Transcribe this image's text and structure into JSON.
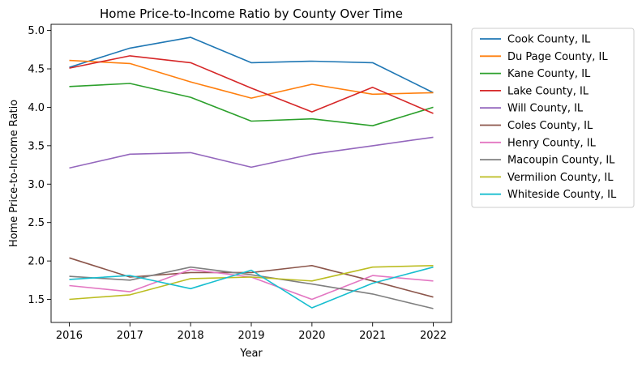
{
  "chart_data": {
    "type": "line",
    "title": "Home Price-to-Income Ratio by County Over Time",
    "xlabel": "Year",
    "ylabel": "Home Price-to-Income Ratio",
    "x": [
      2016,
      2017,
      2018,
      2019,
      2020,
      2021,
      2022
    ],
    "x_ticks": [
      "2016",
      "2017",
      "2018",
      "2019",
      "2020",
      "2021",
      "2022"
    ],
    "y_ticks": [
      "1.5",
      "2.0",
      "2.5",
      "3.0",
      "3.5",
      "4.0",
      "4.5",
      "5.0"
    ],
    "xlim": [
      2015.7,
      2022.3
    ],
    "ylim": [
      1.2,
      5.08
    ],
    "grid": false,
    "legend_position": "outside-right",
    "series": [
      {
        "name": "Cook County, IL",
        "color": "#1f77b4",
        "values": [
          4.52,
          4.77,
          4.91,
          4.58,
          4.6,
          4.58,
          4.19
        ]
      },
      {
        "name": "Du Page County, IL",
        "color": "#ff7f0e",
        "values": [
          4.61,
          4.57,
          4.33,
          4.12,
          4.3,
          4.17,
          4.19
        ]
      },
      {
        "name": "Kane County, IL",
        "color": "#2ca02c",
        "values": [
          4.27,
          4.31,
          4.13,
          3.82,
          3.85,
          3.76,
          4.0
        ]
      },
      {
        "name": "Lake County, IL",
        "color": "#d62728",
        "values": [
          4.51,
          4.67,
          4.58,
          4.25,
          3.94,
          4.26,
          3.92
        ]
      },
      {
        "name": "Will County, IL",
        "color": "#9467bd",
        "values": [
          3.21,
          3.39,
          3.41,
          3.22,
          3.39,
          3.5,
          3.61
        ]
      },
      {
        "name": "Coles County, IL",
        "color": "#8c564b",
        "values": [
          2.04,
          1.79,
          1.85,
          1.85,
          1.94,
          1.74,
          1.53
        ]
      },
      {
        "name": "Henry County, IL",
        "color": "#e377c2",
        "values": [
          1.68,
          1.6,
          1.89,
          1.79,
          1.5,
          1.81,
          1.74
        ]
      },
      {
        "name": "Macoupin County, IL",
        "color": "#7f7f7f",
        "values": [
          1.8,
          1.75,
          1.92,
          1.82,
          1.7,
          1.57,
          1.38
        ]
      },
      {
        "name": "Vermilion County, IL",
        "color": "#bcbd22",
        "values": [
          1.5,
          1.56,
          1.77,
          1.79,
          1.74,
          1.92,
          1.94
        ]
      },
      {
        "name": "Whiteside County, IL",
        "color": "#17becf",
        "values": [
          1.76,
          1.81,
          1.64,
          1.88,
          1.39,
          1.71,
          1.92
        ]
      }
    ]
  }
}
